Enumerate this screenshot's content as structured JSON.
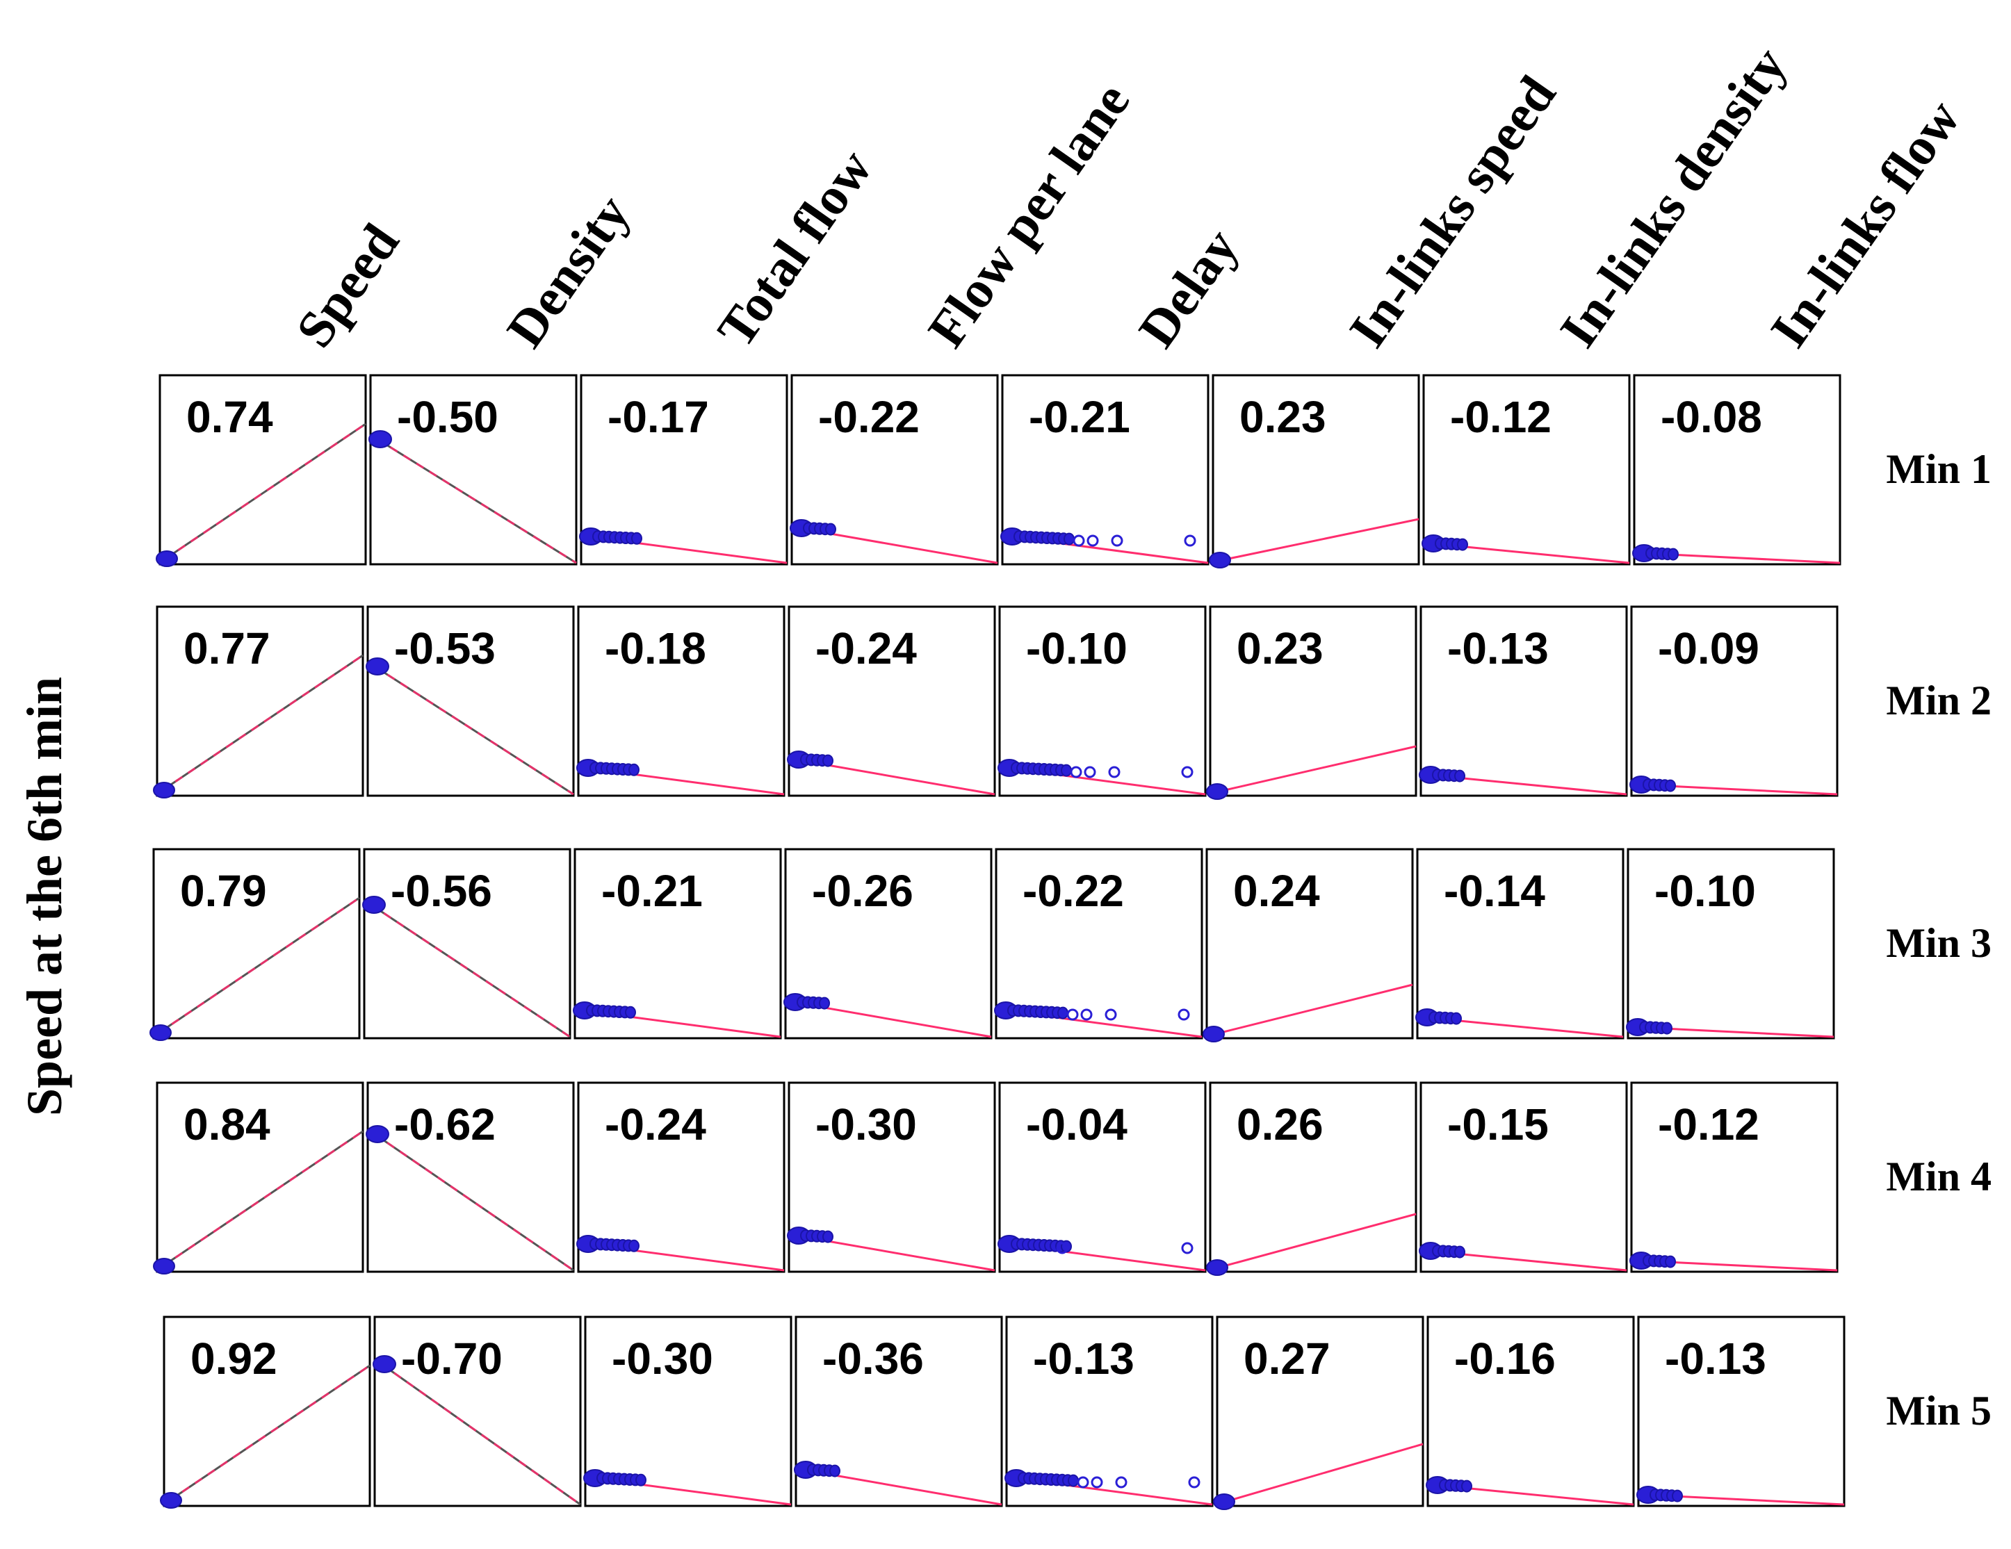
{
  "colors": {
    "points": "#2a1fd6",
    "fit_line": "#ff2d6e",
    "fit_line_dark": "#555555",
    "frame": "#000000"
  },
  "chart_data": {
    "type": "scatter",
    "layout": "matrix",
    "ylabel": "Speed at the 6th min",
    "columns": [
      "Speed",
      "Density",
      "Total flow",
      "Flow per lane",
      "Delay",
      "In-links speed",
      "In-links density",
      "In-links flow"
    ],
    "rows": [
      "Min 1",
      "Min 2",
      "Min 3",
      "Min 4",
      "Min 5"
    ],
    "correlations": [
      [
        "0.74",
        "-0.50",
        "-0.17",
        "-0.22",
        "-0.21",
        "0.23",
        "-0.12",
        "-0.08"
      ],
      [
        "0.77",
        "-0.53",
        "-0.18",
        "-0.24",
        "-0.10",
        "0.23",
        "-0.13",
        "-0.09"
      ],
      [
        "0.79",
        "-0.56",
        "-0.21",
        "-0.26",
        "-0.22",
        "0.24",
        "-0.14",
        "-0.10"
      ],
      [
        "0.84",
        "-0.62",
        "-0.24",
        "-0.30",
        "-0.04",
        "0.26",
        "-0.15",
        "-0.12"
      ],
      [
        "0.92",
        "-0.70",
        "-0.30",
        "-0.36",
        "-0.13",
        "0.27",
        "-0.16",
        "-0.13"
      ]
    ],
    "grid": false,
    "legend": "none"
  }
}
